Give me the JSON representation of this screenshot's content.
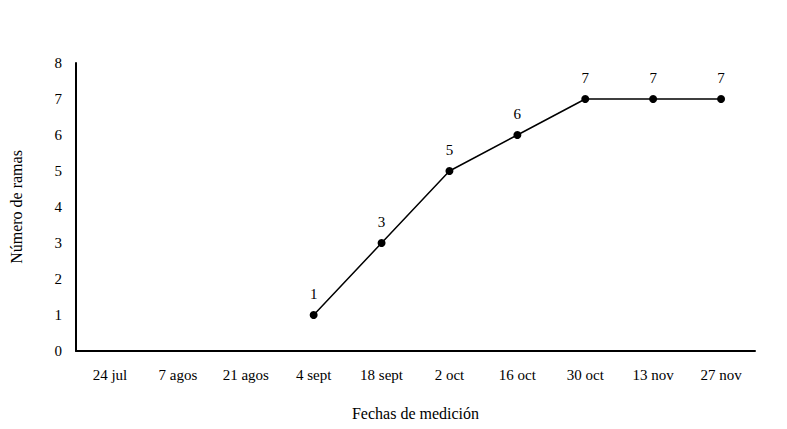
{
  "chart_data": {
    "type": "line",
    "x_label": "Fechas de medición",
    "y_label": "Número de ramas",
    "categories": [
      "24 jul",
      "7 agos",
      "21 agos",
      "4 sept",
      "18 sept",
      "2 oct",
      "16 oct",
      "30 oct",
      "13 nov",
      "27 nov"
    ],
    "values": [
      null,
      null,
      null,
      1,
      3,
      5,
      6,
      7,
      7,
      7
    ],
    "color": "#000000",
    "ylim": [
      0,
      8
    ],
    "yticks": [
      0,
      1,
      2,
      3,
      4,
      5,
      6,
      7,
      8
    ],
    "grid": false,
    "data_labels": true,
    "marker": "circle",
    "line_style": "solid"
  }
}
